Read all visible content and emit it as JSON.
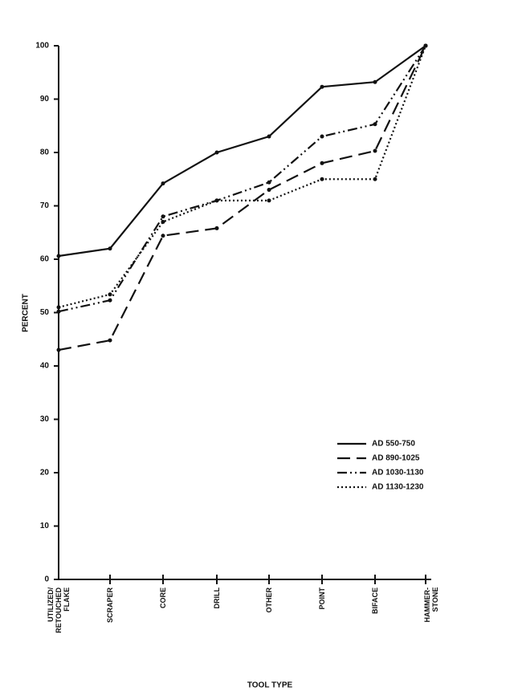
{
  "chart_data": {
    "type": "line",
    "x_label": "TOOL TYPE",
    "y_label": "PERCENT",
    "categories": [
      "UTILIZED/\nRETOUCHED\nFLAKE",
      "SCRAPER",
      "CORE",
      "DRILL",
      "OTHER",
      "POINT",
      "BIFACE",
      "HAMMER-\nSTONE"
    ],
    "series": [
      {
        "name": "AD 550-750",
        "color": "#111111",
        "dash": "solid",
        "values": [
          60.6,
          62,
          74.2,
          80,
          83,
          92.3,
          93.2,
          100
        ]
      },
      {
        "name": "AD 890-1025",
        "color": "#111111",
        "dash": "dashed",
        "values": [
          43,
          44.8,
          64.4,
          65.8,
          73,
          78,
          80.3,
          100
        ]
      },
      {
        "name": "AD 1030-1130",
        "color": "#111111",
        "dash": "dash-dot-dot",
        "values": [
          50.2,
          52.3,
          68,
          71,
          74.4,
          83,
          85.3,
          100
        ]
      },
      {
        "name": "AD 1130-1230",
        "color": "#111111",
        "dash": "dotted",
        "values": [
          51,
          53.4,
          67,
          71,
          71,
          75,
          75,
          100
        ]
      }
    ],
    "ylim": [
      0,
      100
    ],
    "yticks": [
      0,
      10,
      20,
      30,
      40,
      50,
      60,
      70,
      80,
      90,
      100
    ],
    "grid": false,
    "legend": "lower-right"
  }
}
